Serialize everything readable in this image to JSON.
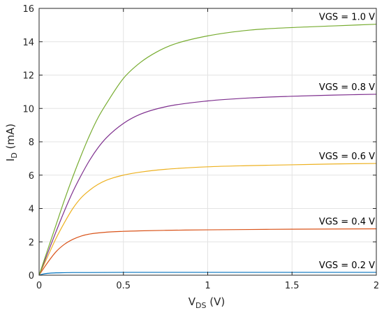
{
  "chart_data": {
    "type": "line",
    "title": "",
    "xlabel": {
      "main": "V",
      "sub": "DS",
      "unit": " (V)"
    },
    "ylabel": {
      "main": "I",
      "sub": "D",
      "unit": " (mA)"
    },
    "xlim": [
      0,
      2
    ],
    "ylim": [
      0,
      16
    ],
    "xticks": [
      0,
      0.5,
      1,
      1.5,
      2
    ],
    "xtick_labels": [
      "0",
      "0.5",
      "1",
      "1.5",
      "2"
    ],
    "yticks": [
      0,
      2,
      4,
      6,
      8,
      10,
      12,
      14,
      16
    ],
    "ytick_labels": [
      "0",
      "2",
      "4",
      "6",
      "8",
      "10",
      "12",
      "14",
      "16"
    ],
    "grid": true,
    "series": [
      {
        "name": "VGS = 0.2 V",
        "color": "#0072BD",
        "x": [
          0,
          0.02,
          0.05,
          0.1,
          0.15,
          0.2,
          0.3,
          0.5,
          0.75,
          1.0,
          1.5,
          2.0
        ],
        "y": [
          0,
          0.06,
          0.11,
          0.14,
          0.15,
          0.16,
          0.16,
          0.17,
          0.17,
          0.17,
          0.17,
          0.17
        ]
      },
      {
        "name": "VGS = 0.4 V",
        "color": "#D95319",
        "x": [
          0,
          0.05,
          0.1,
          0.15,
          0.2,
          0.25,
          0.3,
          0.4,
          0.5,
          0.6,
          0.75,
          1.0,
          1.25,
          1.5,
          1.75,
          2.0
        ],
        "y": [
          0,
          0.75,
          1.4,
          1.85,
          2.15,
          2.35,
          2.47,
          2.58,
          2.63,
          2.66,
          2.69,
          2.72,
          2.74,
          2.76,
          2.77,
          2.78
        ]
      },
      {
        "name": "VGS = 0.6 V",
        "color": "#EDB120",
        "x": [
          0,
          0.05,
          0.1,
          0.15,
          0.2,
          0.25,
          0.3,
          0.35,
          0.4,
          0.5,
          0.6,
          0.75,
          1.0,
          1.25,
          1.5,
          1.75,
          2.0
        ],
        "y": [
          0,
          1.1,
          2.2,
          3.15,
          4.0,
          4.65,
          5.1,
          5.45,
          5.7,
          6.0,
          6.18,
          6.35,
          6.5,
          6.57,
          6.62,
          6.67,
          6.7
        ]
      },
      {
        "name": "VGS = 0.8 V",
        "color": "#7E2F8E",
        "x": [
          0,
          0.05,
          0.1,
          0.15,
          0.2,
          0.25,
          0.3,
          0.35,
          0.4,
          0.5,
          0.6,
          0.75,
          1.0,
          1.25,
          1.5,
          1.75,
          2.0
        ],
        "y": [
          0,
          1.3,
          2.6,
          3.85,
          5.0,
          6.0,
          6.9,
          7.65,
          8.25,
          9.1,
          9.65,
          10.1,
          10.45,
          10.63,
          10.73,
          10.8,
          10.85
        ]
      },
      {
        "name": "VGS = 1.0 V",
        "color": "#77AC30",
        "x": [
          0,
          0.05,
          0.1,
          0.15,
          0.2,
          0.25,
          0.3,
          0.35,
          0.4,
          0.5,
          0.6,
          0.7,
          0.8,
          1.0,
          1.25,
          1.5,
          1.75,
          2.0
        ],
        "y": [
          0,
          1.5,
          3.0,
          4.5,
          5.9,
          7.2,
          8.4,
          9.45,
          10.3,
          11.8,
          12.75,
          13.4,
          13.85,
          14.35,
          14.7,
          14.85,
          14.95,
          15.05
        ]
      }
    ]
  }
}
